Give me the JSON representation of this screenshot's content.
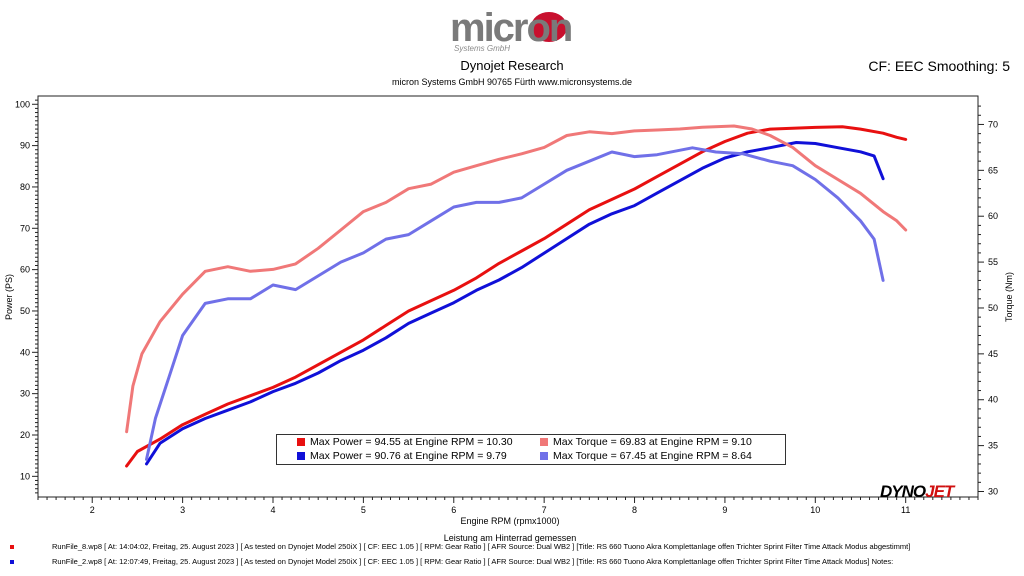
{
  "header": {
    "logo_text": "micron",
    "logo_subtext": "Systems GmbH",
    "title": "Dynojet Research",
    "subtitle": "micron Systems GmbH  90765 Fürth www.micronsystems.de",
    "smoothing": "CF: EEC Smoothing: 5"
  },
  "brand": {
    "dyno": "DYNO",
    "jet": "JET"
  },
  "colors": {
    "run1_power": "#e81010",
    "run2_power": "#1010d8",
    "run1_torque": "#f07878",
    "run2_torque": "#7070e8"
  },
  "chart_data": {
    "type": "line",
    "xlabel": "Engine RPM (rpmx1000)",
    "xlabel_top": "Leistung am Hinterrad gemessen",
    "ylabel": "Power (PS)",
    "y2label": "Torque (Nm)",
    "xlim": [
      1.4,
      11.8
    ],
    "ylim": [
      5,
      102
    ],
    "y2lim": [
      29.4,
      73.1
    ],
    "x_ticks": [
      "2",
      "3",
      "4",
      "5",
      "6",
      "7",
      "8",
      "9",
      "10",
      "11"
    ],
    "y_ticks": [
      "10",
      "20",
      "30",
      "40",
      "50",
      "60",
      "70",
      "80",
      "90",
      "100"
    ],
    "y2_ticks": [
      "30",
      "35",
      "40",
      "45",
      "50",
      "55",
      "60",
      "65",
      "70"
    ],
    "series": [
      {
        "name": "Max Power = 94.55 at Engine RPM = 10.30",
        "axis": "left",
        "color": "#e81010",
        "x": [
          2.38,
          2.5,
          2.75,
          3.0,
          3.25,
          3.5,
          3.75,
          4.0,
          4.25,
          4.5,
          4.75,
          5.0,
          5.25,
          5.5,
          5.75,
          6.0,
          6.25,
          6.5,
          6.75,
          7.0,
          7.25,
          7.5,
          7.75,
          8.0,
          8.25,
          8.5,
          8.75,
          9.0,
          9.25,
          9.5,
          9.75,
          10.0,
          10.3,
          10.5,
          10.75,
          10.9,
          11.0
        ],
        "y": [
          12.5,
          16.0,
          19.0,
          22.5,
          25.0,
          27.5,
          29.5,
          31.5,
          34.0,
          37.0,
          40.0,
          43.0,
          46.5,
          50.0,
          52.5,
          55.0,
          58.0,
          61.5,
          64.5,
          67.5,
          71.0,
          74.5,
          77.0,
          79.5,
          82.5,
          85.5,
          88.5,
          91.0,
          93.0,
          94.0,
          94.2,
          94.4,
          94.55,
          94.0,
          93.0,
          92.0,
          91.5
        ]
      },
      {
        "name": "Max Power = 90.76 at Engine RPM = 9.79",
        "axis": "left",
        "color": "#1010d8",
        "x": [
          2.6,
          2.75,
          3.0,
          3.25,
          3.5,
          3.75,
          4.0,
          4.25,
          4.5,
          4.75,
          5.0,
          5.25,
          5.5,
          5.75,
          6.0,
          6.25,
          6.5,
          6.75,
          7.0,
          7.25,
          7.5,
          7.75,
          8.0,
          8.25,
          8.5,
          8.75,
          9.0,
          9.25,
          9.5,
          9.79,
          10.0,
          10.25,
          10.5,
          10.65,
          10.75
        ],
        "y": [
          13.0,
          18.0,
          21.5,
          24.0,
          26.0,
          28.0,
          30.5,
          32.5,
          35.0,
          38.0,
          40.5,
          43.5,
          47.0,
          49.5,
          52.0,
          55.0,
          57.5,
          60.5,
          64.0,
          67.5,
          71.0,
          73.5,
          75.5,
          78.5,
          81.5,
          84.5,
          87.0,
          88.5,
          89.5,
          90.76,
          90.5,
          89.5,
          88.5,
          87.5,
          82.0
        ]
      },
      {
        "name": "Max Torque = 69.83 at Engine RPM = 9.10",
        "axis": "right",
        "color": "#f07878",
        "x": [
          2.38,
          2.45,
          2.55,
          2.75,
          3.0,
          3.25,
          3.5,
          3.75,
          4.0,
          4.25,
          4.5,
          4.75,
          5.0,
          5.25,
          5.5,
          5.75,
          6.0,
          6.25,
          6.5,
          6.75,
          7.0,
          7.25,
          7.5,
          7.75,
          8.0,
          8.25,
          8.5,
          8.75,
          9.1,
          9.3,
          9.5,
          9.75,
          10.0,
          10.25,
          10.5,
          10.75,
          10.9,
          11.0
        ],
        "y": [
          36.5,
          41.5,
          45.0,
          48.5,
          51.5,
          54.0,
          54.5,
          54.0,
          54.2,
          54.8,
          56.5,
          58.5,
          60.5,
          61.5,
          63.0,
          63.5,
          64.8,
          65.5,
          66.2,
          66.8,
          67.5,
          68.8,
          69.2,
          69.0,
          69.3,
          69.4,
          69.5,
          69.7,
          69.83,
          69.5,
          68.8,
          67.5,
          65.5,
          64.0,
          62.5,
          60.5,
          59.5,
          58.5
        ]
      },
      {
        "name": "Max Torque = 67.45 at Engine RPM = 8.64",
        "axis": "right",
        "color": "#7070e8",
        "x": [
          2.6,
          2.7,
          2.85,
          3.0,
          3.25,
          3.5,
          3.75,
          4.0,
          4.25,
          4.5,
          4.75,
          5.0,
          5.25,
          5.5,
          5.75,
          6.0,
          6.25,
          6.5,
          6.75,
          7.0,
          7.25,
          7.5,
          7.75,
          8.0,
          8.25,
          8.64,
          8.9,
          9.2,
          9.5,
          9.75,
          10.0,
          10.25,
          10.5,
          10.65,
          10.75
        ],
        "y": [
          33.5,
          38.0,
          42.5,
          47.0,
          50.5,
          51.0,
          51.0,
          52.5,
          52.0,
          53.5,
          55.0,
          56.0,
          57.5,
          58.0,
          59.5,
          61.0,
          61.5,
          61.5,
          62.0,
          63.5,
          65.0,
          66.0,
          67.0,
          66.5,
          66.7,
          67.45,
          67.0,
          66.8,
          66.0,
          65.5,
          64.0,
          62.0,
          59.5,
          57.5,
          53.0
        ]
      }
    ],
    "legend_placement": "bottom-center",
    "grid": false
  },
  "footer": [
    {
      "color": "#e81010",
      "text": "RunFile_8.wp8  [ At:  14:04:02, Freitag, 25. August 2023 ]  [ As tested on Dynojet Model 250iX ]  [ CF:  EEC 1.05 ]  [ RPM:  Gear Ratio ]  [ AFR Source:  Dual WB2 ]  [Title:  RS 660 Tuono Akra Komplettanlage offen Trichter Sprint Filter Time Attack Modus abgestimmt]"
    },
    {
      "color": "#1010d8",
      "text": "RunFile_2.wp8  [ At:  12:07:49, Freitag, 25. August 2023 ]  [ As tested on Dynojet Model 250iX ]  [ CF:  EEC 1.05 ]  [ RPM:  Gear Ratio ]  [ AFR Source:  Dual WB2 ]  [Title:  RS 660 Tuono Akra Komplettanlage offen Trichter Sprint Filter Time Attack Modus]  Notes:"
    }
  ]
}
